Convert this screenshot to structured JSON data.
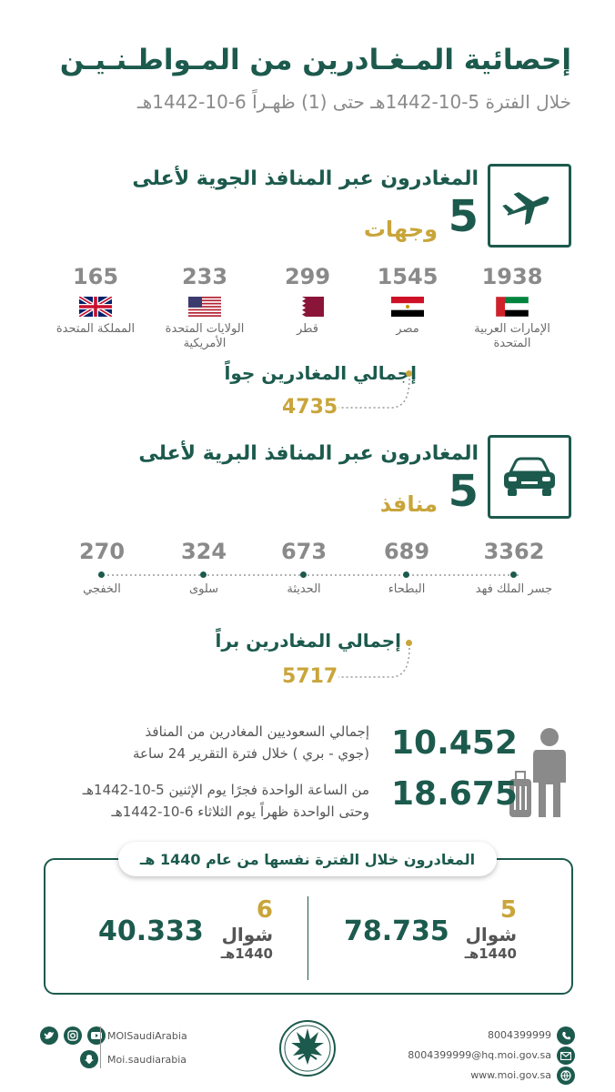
{
  "header": {
    "title": "إحصائية المـغـادرين من المـواطـنـيـن",
    "subtitle": "خلال الفترة 5-10-1442هـ حتى (1) ظهـراً 6-10-1442هـ"
  },
  "air": {
    "title": "المغادرون عبر المنافذ الجوية لأعلى",
    "count": "5",
    "count_label": "وجهات",
    "destinations": [
      {
        "value": "1938",
        "name": "الإمارات العربية المتحدة"
      },
      {
        "value": "1545",
        "name": "مصر"
      },
      {
        "value": "299",
        "name": "قطر"
      },
      {
        "value": "233",
        "name": "الولايات المتحدة الأمريكية"
      },
      {
        "value": "165",
        "name": "المملكة المتحدة"
      }
    ],
    "total_label": "إجمالي المغادرين جواً",
    "total_value": "4735"
  },
  "land": {
    "title": "المغادرون عبر  المنافذ البرية لأعلى",
    "count": "5",
    "count_label": "منافذ",
    "ports": [
      {
        "value": "3362",
        "name": "جسر الملك فهد"
      },
      {
        "value": "689",
        "name": "البطحاء"
      },
      {
        "value": "673",
        "name": "الحديثة"
      },
      {
        "value": "324",
        "name": "سلوى"
      },
      {
        "value": "270",
        "name": "الخفجي"
      }
    ],
    "total_label": "إجمالي المغادرين براً",
    "total_value": "5717"
  },
  "summary": {
    "total_value": "10.452",
    "total_text_1": "إجمالي السعوديين المغادرين من المنافذ",
    "total_text_2": "(جوي - بري ) خلال فترة التقرير 24 ساعة",
    "second_value": "18.675",
    "second_text_1": "من الساعة الواحدة فجرًا يوم الإثنين 5-10-1442هـ",
    "second_text_2": "وحتى الواحدة ظهراً يوم الثلاثاء 6-10-1442هـ"
  },
  "comparison": {
    "title": "المغادرون خلال الفترة نفسها من عام 1440 هـ",
    "items": [
      {
        "day": "5",
        "month": "شوال",
        "year": "1440هـ",
        "value": "78.735"
      },
      {
        "day": "6",
        "month": "شوال",
        "year": "1440هـ",
        "value": "40.333"
      }
    ]
  },
  "footer": {
    "phone": "8004399999",
    "email": "8004399999@hq.moi.gov.sa",
    "website": "www.moi.gov.sa",
    "handle_1": "MOISaudiArabia",
    "handle_2": "Moi.saudiarabia"
  },
  "colors": {
    "primary": "#1c5a4d",
    "accent": "#c9a53a",
    "muted": "#8a8a8a"
  }
}
